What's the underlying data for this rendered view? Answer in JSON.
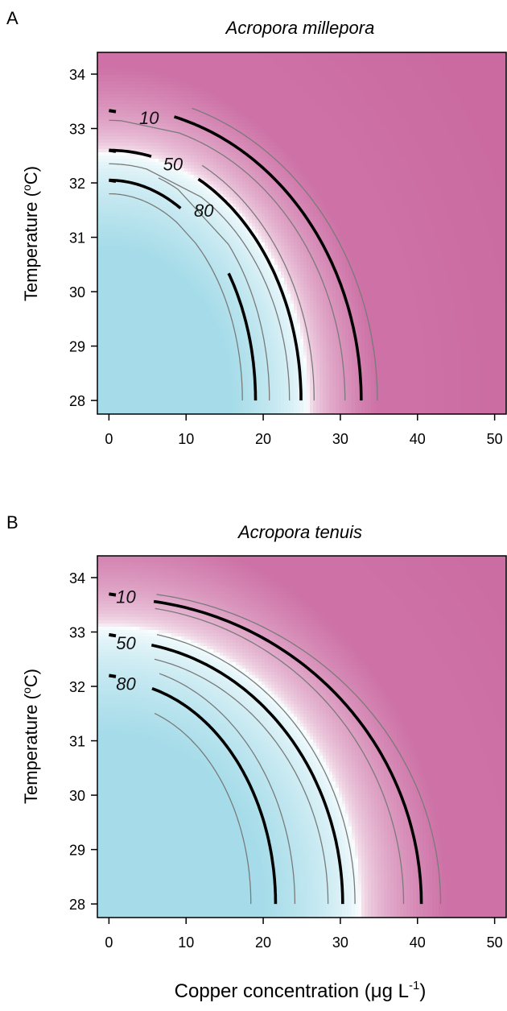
{
  "figure": {
    "xlabel": "Copper concentration (μg L",
    "xlabel_sup": "-1",
    "xlabel_end": ")"
  },
  "chart_data": [
    {
      "type": "heatmap",
      "panel_label": "A",
      "title": "Acropora millepora",
      "ylabel": "Temperature (",
      "ylabel_sup": "o",
      "ylabel_end": "C)",
      "xlim": [
        -1.5,
        51.5
      ],
      "ylim": [
        27.75,
        34.4
      ],
      "x_ticks": [
        0,
        10,
        20,
        30,
        40,
        50
      ],
      "y_ticks": [
        28,
        29,
        30,
        31,
        32,
        33,
        34
      ],
      "colormap": {
        "high": "#a6dce9",
        "mid": "#ffffff",
        "low": "#cd71a6"
      },
      "contours": [
        {
          "level": "10",
          "label_at": {
            "x": 5.2,
            "y": 33.2
          },
          "start": {
            "x": 0,
            "y": 33.33
          },
          "a": 32.7,
          "b": 5.4,
          "band": [
            {
              "a": 30.6,
              "b": 5.15
            },
            {
              "a": 34.8,
              "b": 5.65
            }
          ]
        },
        {
          "level": "50",
          "label_at": {
            "x": 8.3,
            "y": 32.35
          },
          "start": {
            "x": 0,
            "y": 32.6
          },
          "a": 24.9,
          "b": 4.6,
          "band": [
            {
              "a": 23.4,
              "b": 4.35
            },
            {
              "a": 26.6,
              "b": 4.85
            }
          ]
        },
        {
          "level": "80",
          "label_at": {
            "x": 12.3,
            "y": 31.5
          },
          "start": {
            "x": 0,
            "y": 32.05
          },
          "a": 19.0,
          "b": 4.05,
          "band": [
            {
              "a": 17.3,
              "b": 3.8
            },
            {
              "a": 20.8,
              "b": 4.3
            }
          ]
        }
      ],
      "field_scale": {
        "a": 25.8,
        "b": 4.55
      }
    },
    {
      "type": "heatmap",
      "panel_label": "B",
      "title": "Acropora tenuis",
      "ylabel": "Temperature (",
      "ylabel_sup": "o",
      "ylabel_end": "C)",
      "xlim": [
        -1.5,
        51.5
      ],
      "ylim": [
        27.75,
        34.4
      ],
      "x_ticks": [
        0,
        10,
        20,
        30,
        40,
        50
      ],
      "y_ticks": [
        28,
        29,
        30,
        31,
        32,
        33,
        34
      ],
      "colormap": {
        "high": "#a6dce9",
        "mid": "#ffffff",
        "low": "#cd71a6"
      },
      "contours": [
        {
          "level": "10",
          "label_at": {
            "x": 2.2,
            "y": 33.65
          },
          "start": {
            "x": 0,
            "y": 33.7
          },
          "a": 40.5,
          "b": 5.62,
          "band": [
            {
              "a": 38.2,
              "b": 5.5
            },
            {
              "a": 43.0,
              "b": 5.75
            }
          ]
        },
        {
          "level": "50",
          "label_at": {
            "x": 2.2,
            "y": 32.8
          },
          "start": {
            "x": 0,
            "y": 32.95
          },
          "a": 30.3,
          "b": 4.84,
          "band": [
            {
              "a": 28.4,
              "b": 4.6
            },
            {
              "a": 31.9,
              "b": 5.05
            }
          ]
        },
        {
          "level": "80",
          "label_at": {
            "x": 2.2,
            "y": 32.05
          },
          "start": {
            "x": 0,
            "y": 32.2
          },
          "a": 21.6,
          "b": 4.1,
          "band": [
            {
              "a": 18.4,
              "b": 3.7
            },
            {
              "a": 24.1,
              "b": 4.4
            }
          ]
        }
      ],
      "field_scale": {
        "a": 32.5,
        "b": 5.1
      }
    }
  ]
}
